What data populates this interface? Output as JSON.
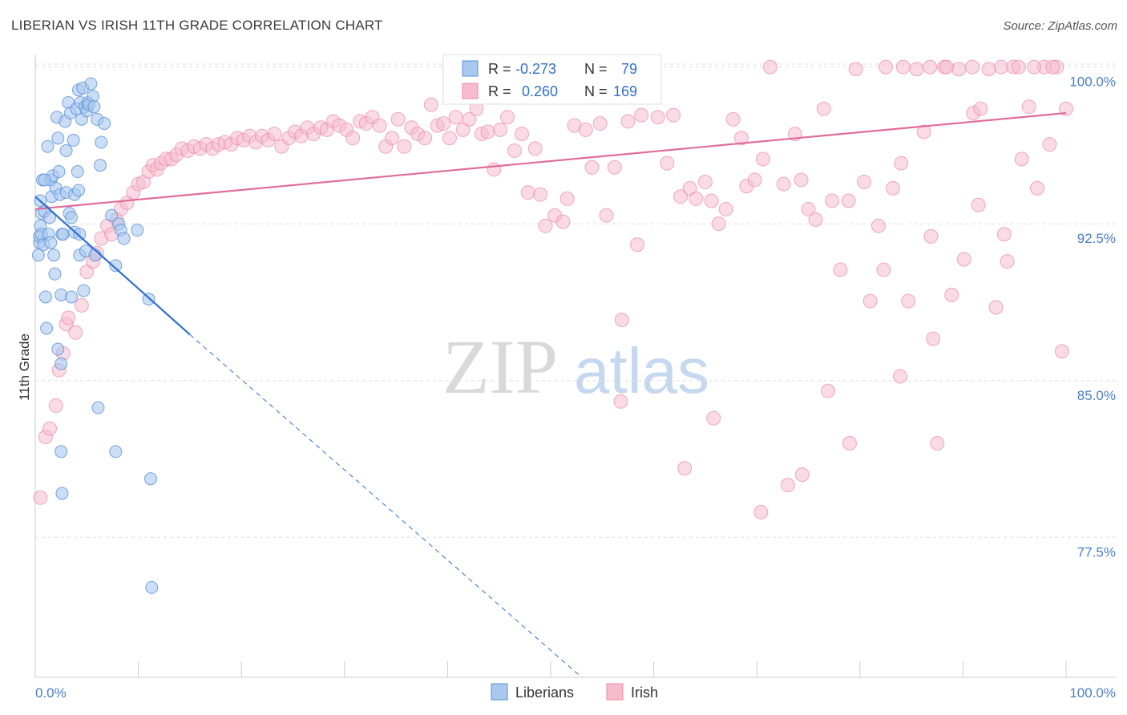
{
  "title": "LIBERIAN VS IRISH 11TH GRADE CORRELATION CHART",
  "source": "Source: ZipAtlas.com",
  "watermark": {
    "zip": "ZIP",
    "atlas": "atlas"
  },
  "colors": {
    "liberians_fill": "#a9c8ee",
    "liberians_stroke": "#5a8fd6",
    "liberians_line": "#2f6fd0",
    "irish_fill": "#f6bccd",
    "irish_stroke": "#e88aa8",
    "irish_line": "#e06d98",
    "tick_text": "#4a7fc8",
    "grid": "#dddddd"
  },
  "legend": {
    "rows": [
      {
        "r_label": "R =",
        "r_value": "-0.273",
        "n_label": "N =",
        "n_value": "79",
        "series": "liberians"
      },
      {
        "r_label": "R =",
        "r_value": "0.260",
        "n_label": "N =",
        "n_value": "169",
        "series": "irish"
      }
    ]
  },
  "bottom_legend": [
    {
      "label": "Liberians",
      "series": "liberians"
    },
    {
      "label": "Irish",
      "series": "irish"
    }
  ],
  "chart_data": {
    "type": "scatter",
    "title": "LIBERIAN VS IRISH 11TH GRADE CORRELATION CHART",
    "xlabel": "",
    "ylabel": "11th Grade",
    "xlim": [
      0,
      100
    ],
    "ylim": [
      70.8,
      100.6
    ],
    "x_tick_labels": [
      "0.0%",
      "100.0%"
    ],
    "y_ticks": [
      77.5,
      85.0,
      92.5,
      100.0
    ],
    "y_tick_labels": [
      "77.5%",
      "85.0%",
      "92.5%",
      "100.0%"
    ],
    "grid": "horizontal dashed",
    "legend_position": "top-center",
    "series": [
      {
        "name": "Liberians",
        "r": -0.273,
        "n": 79,
        "trend": {
          "x": [
            0,
            15
          ],
          "y": [
            93.8,
            87.2
          ],
          "dashed_to": [
            53,
            70.8
          ]
        },
        "points": [
          [
            0.3,
            91.0
          ],
          [
            0.4,
            91.6
          ],
          [
            0.5,
            92.4
          ],
          [
            0.6,
            93.0
          ],
          [
            0.5,
            93.6
          ],
          [
            0.7,
            94.6
          ],
          [
            0.4,
            91.9
          ],
          [
            0.6,
            92.0
          ],
          [
            0.8,
            91.5
          ],
          [
            0.9,
            93.1
          ],
          [
            1.0,
            89.0
          ],
          [
            1.1,
            87.5
          ],
          [
            1.2,
            96.2
          ],
          [
            1.3,
            92.0
          ],
          [
            1.4,
            92.8
          ],
          [
            1.5,
            94.6
          ],
          [
            1.5,
            91.6
          ],
          [
            1.6,
            93.8
          ],
          [
            1.7,
            94.8
          ],
          [
            1.8,
            91.0
          ],
          [
            1.9,
            90.1
          ],
          [
            2.0,
            94.2
          ],
          [
            2.1,
            97.6
          ],
          [
            2.2,
            96.6
          ],
          [
            2.3,
            95.0
          ],
          [
            2.4,
            93.9
          ],
          [
            2.5,
            85.8
          ],
          [
            2.6,
            92.0
          ],
          [
            2.7,
            92.0
          ],
          [
            2.2,
            86.5
          ],
          [
            2.5,
            81.6
          ],
          [
            2.6,
            79.6
          ],
          [
            2.5,
            89.1
          ],
          [
            2.9,
            97.4
          ],
          [
            3.0,
            96.0
          ],
          [
            3.0,
            94.0
          ],
          [
            3.2,
            98.3
          ],
          [
            3.3,
            93.0
          ],
          [
            3.4,
            97.8
          ],
          [
            3.5,
            92.8
          ],
          [
            3.5,
            89.0
          ],
          [
            3.7,
            96.5
          ],
          [
            3.8,
            93.9
          ],
          [
            3.8,
            92.1
          ],
          [
            4.0,
            98.0
          ],
          [
            4.1,
            95.0
          ],
          [
            4.2,
            98.9
          ],
          [
            4.2,
            94.1
          ],
          [
            4.3,
            92.0
          ],
          [
            4.3,
            91.0
          ],
          [
            4.4,
            98.3
          ],
          [
            4.5,
            97.5
          ],
          [
            4.6,
            99.0
          ],
          [
            4.7,
            89.3
          ],
          [
            4.8,
            98.1
          ],
          [
            4.9,
            91.2
          ],
          [
            5.0,
            97.9
          ],
          [
            5.1,
            98.3
          ],
          [
            5.2,
            98.2
          ],
          [
            5.4,
            99.2
          ],
          [
            5.6,
            98.6
          ],
          [
            5.7,
            98.1
          ],
          [
            5.8,
            91.0
          ],
          [
            6.0,
            97.5
          ],
          [
            6.1,
            83.7
          ],
          [
            6.3,
            95.3
          ],
          [
            6.4,
            96.4
          ],
          [
            6.7,
            97.3
          ],
          [
            7.4,
            92.9
          ],
          [
            7.8,
            81.6
          ],
          [
            7.8,
            90.5
          ],
          [
            8.1,
            92.5
          ],
          [
            8.3,
            92.2
          ],
          [
            8.6,
            91.8
          ],
          [
            9.9,
            92.2
          ],
          [
            11.0,
            88.9
          ],
          [
            11.2,
            80.3
          ],
          [
            11.3,
            75.1
          ],
          [
            0.9,
            94.6
          ]
        ]
      },
      {
        "name": "Irish",
        "r": 0.26,
        "n": 169,
        "trend": {
          "x": [
            0,
            100
          ],
          "y": [
            93.2,
            97.8
          ]
        },
        "points": [
          [
            0.5,
            79.4
          ],
          [
            1.0,
            82.3
          ],
          [
            1.4,
            82.7
          ],
          [
            2.0,
            83.8
          ],
          [
            2.3,
            85.5
          ],
          [
            2.7,
            86.3
          ],
          [
            3.0,
            87.7
          ],
          [
            3.2,
            88.0
          ],
          [
            3.9,
            87.3
          ],
          [
            4.5,
            88.6
          ],
          [
            5.0,
            90.2
          ],
          [
            5.6,
            90.7
          ],
          [
            6.0,
            91.1
          ],
          [
            6.4,
            91.8
          ],
          [
            7.0,
            92.4
          ],
          [
            7.4,
            92.0
          ],
          [
            7.9,
            92.7
          ],
          [
            8.3,
            93.2
          ],
          [
            8.9,
            93.5
          ],
          [
            9.5,
            94.0
          ],
          [
            10.0,
            94.4
          ],
          [
            10.5,
            94.5
          ],
          [
            11.0,
            95.0
          ],
          [
            11.4,
            95.3
          ],
          [
            11.8,
            95.1
          ],
          [
            12.2,
            95.4
          ],
          [
            12.7,
            95.6
          ],
          [
            13.2,
            95.6
          ],
          [
            13.7,
            95.8
          ],
          [
            14.2,
            96.1
          ],
          [
            14.8,
            96.0
          ],
          [
            15.4,
            96.2
          ],
          [
            16.0,
            96.1
          ],
          [
            16.6,
            96.3
          ],
          [
            17.2,
            96.1
          ],
          [
            17.8,
            96.3
          ],
          [
            18.4,
            96.4
          ],
          [
            19.0,
            96.3
          ],
          [
            19.6,
            96.6
          ],
          [
            20.2,
            96.5
          ],
          [
            20.8,
            96.7
          ],
          [
            21.4,
            96.4
          ],
          [
            22.0,
            96.7
          ],
          [
            22.6,
            96.5
          ],
          [
            23.2,
            96.8
          ],
          [
            23.9,
            96.2
          ],
          [
            24.6,
            96.6
          ],
          [
            25.2,
            96.9
          ],
          [
            25.8,
            96.7
          ],
          [
            26.4,
            97.1
          ],
          [
            27.0,
            96.8
          ],
          [
            27.7,
            97.1
          ],
          [
            28.3,
            97.0
          ],
          [
            28.9,
            97.4
          ],
          [
            29.5,
            97.2
          ],
          [
            30.2,
            97.0
          ],
          [
            30.8,
            96.6
          ],
          [
            31.5,
            97.4
          ],
          [
            32.1,
            97.3
          ],
          [
            32.7,
            97.6
          ],
          [
            33.4,
            97.2
          ],
          [
            34.0,
            96.2
          ],
          [
            34.6,
            96.6
          ],
          [
            35.2,
            97.5
          ],
          [
            35.8,
            96.2
          ],
          [
            36.5,
            97.1
          ],
          [
            37.1,
            96.8
          ],
          [
            37.8,
            96.6
          ],
          [
            38.4,
            98.2
          ],
          [
            39.0,
            97.2
          ],
          [
            39.6,
            97.3
          ],
          [
            40.2,
            96.6
          ],
          [
            40.8,
            97.6
          ],
          [
            41.5,
            97.0
          ],
          [
            42.1,
            97.5
          ],
          [
            42.8,
            98.0
          ],
          [
            43.3,
            96.8
          ],
          [
            43.9,
            96.9
          ],
          [
            44.5,
            95.1
          ],
          [
            45.1,
            97.0
          ],
          [
            45.8,
            97.6
          ],
          [
            46.5,
            96.0
          ],
          [
            47.2,
            96.8
          ],
          [
            47.8,
            94.0
          ],
          [
            48.5,
            96.1
          ],
          [
            49.0,
            93.9
          ],
          [
            49.5,
            92.4
          ],
          [
            50.4,
            92.9
          ],
          [
            51.2,
            92.6
          ],
          [
            51.6,
            93.7
          ],
          [
            52.3,
            97.2
          ],
          [
            53.4,
            97.0
          ],
          [
            54.0,
            95.2
          ],
          [
            54.8,
            97.3
          ],
          [
            55.4,
            92.9
          ],
          [
            56.2,
            95.2
          ],
          [
            56.9,
            87.9
          ],
          [
            57.5,
            97.4
          ],
          [
            58.4,
            91.5
          ],
          [
            58.8,
            97.7
          ],
          [
            59.6,
            99.0
          ],
          [
            60.4,
            97.6
          ],
          [
            61.3,
            95.4
          ],
          [
            61.9,
            97.7
          ],
          [
            62.6,
            93.8
          ],
          [
            63.5,
            94.2
          ],
          [
            64.1,
            93.7
          ],
          [
            65.0,
            94.5
          ],
          [
            65.6,
            93.6
          ],
          [
            66.3,
            92.5
          ],
          [
            67.0,
            93.2
          ],
          [
            67.7,
            97.5
          ],
          [
            68.5,
            96.6
          ],
          [
            69.0,
            94.3
          ],
          [
            69.8,
            94.6
          ],
          [
            70.6,
            95.6
          ],
          [
            71.3,
            100.0
          ],
          [
            72.6,
            94.4
          ],
          [
            73.7,
            96.8
          ],
          [
            74.3,
            94.6
          ],
          [
            75.0,
            93.2
          ],
          [
            75.7,
            92.7
          ],
          [
            76.5,
            98.0
          ],
          [
            77.3,
            93.6
          ],
          [
            78.1,
            90.3
          ],
          [
            78.9,
            93.6
          ],
          [
            79.6,
            99.9
          ],
          [
            80.4,
            94.5
          ],
          [
            81.0,
            88.8
          ],
          [
            81.8,
            92.4
          ],
          [
            82.3,
            90.3
          ],
          [
            83.2,
            94.2
          ],
          [
            84.0,
            95.4
          ],
          [
            84.7,
            88.8
          ],
          [
            85.5,
            99.9
          ],
          [
            86.2,
            96.9
          ],
          [
            86.9,
            91.9
          ],
          [
            87.5,
            82.0
          ],
          [
            88.2,
            100.0
          ],
          [
            88.9,
            89.1
          ],
          [
            89.6,
            99.9
          ],
          [
            90.1,
            90.8
          ],
          [
            91.0,
            97.8
          ],
          [
            91.7,
            98.0
          ],
          [
            92.5,
            99.9
          ],
          [
            93.2,
            88.5
          ],
          [
            94.0,
            92.0
          ],
          [
            94.9,
            100.0
          ],
          [
            95.7,
            95.6
          ],
          [
            96.4,
            98.1
          ],
          [
            97.2,
            94.2
          ],
          [
            97.9,
            100.0
          ],
          [
            98.4,
            96.3
          ],
          [
            99.1,
            100.0
          ],
          [
            99.6,
            86.4
          ],
          [
            100.0,
            98.0
          ],
          [
            63.0,
            80.8
          ],
          [
            73.0,
            80.0
          ],
          [
            76.9,
            84.5
          ],
          [
            82.5,
            100.0
          ],
          [
            84.2,
            100.0
          ],
          [
            86.8,
            100.0
          ],
          [
            88.4,
            100.0
          ],
          [
            90.9,
            100.0
          ],
          [
            93.7,
            100.0
          ],
          [
            95.4,
            100.0
          ],
          [
            96.9,
            100.0
          ],
          [
            98.7,
            100.0
          ],
          [
            56.8,
            84.0
          ],
          [
            65.8,
            83.2
          ],
          [
            70.4,
            78.7
          ],
          [
            74.4,
            80.5
          ],
          [
            79.0,
            82.0
          ],
          [
            83.9,
            85.2
          ],
          [
            87.1,
            87.0
          ],
          [
            91.5,
            93.4
          ],
          [
            94.3,
            90.7
          ]
        ]
      }
    ]
  }
}
